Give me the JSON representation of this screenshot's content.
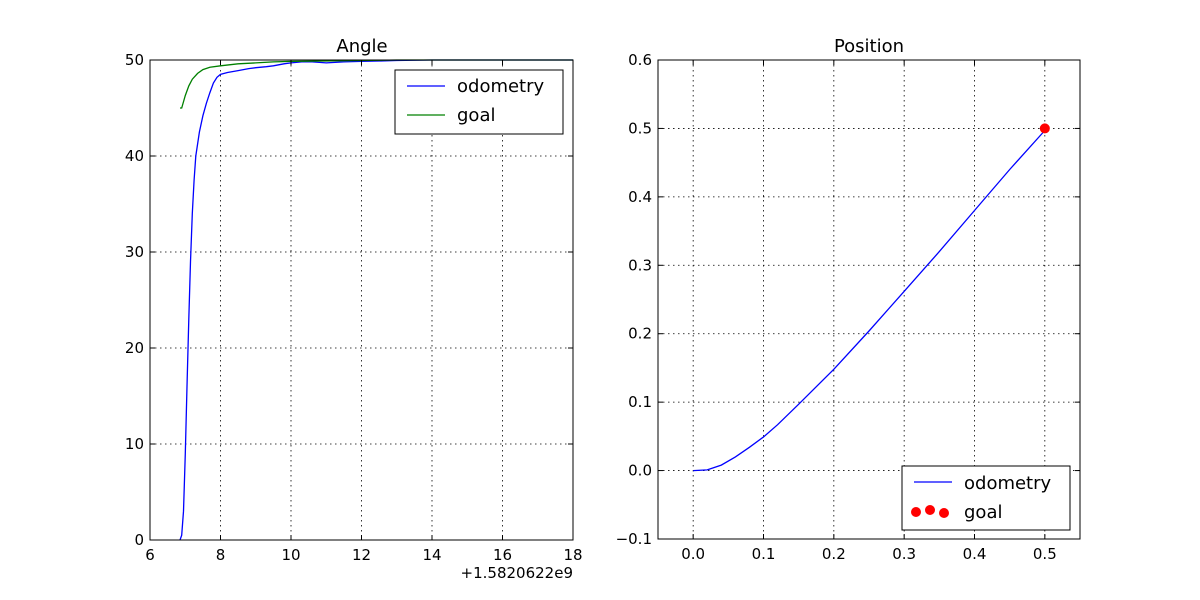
{
  "chart_data": [
    {
      "type": "line",
      "title": "Angle",
      "xlabel": "",
      "ylabel": "",
      "xlim": [
        6,
        18
      ],
      "ylim": [
        0,
        50
      ],
      "xticks": [
        6,
        8,
        10,
        12,
        14,
        16,
        18
      ],
      "yticks": [
        0,
        10,
        20,
        30,
        40,
        50
      ],
      "x_offset_label": "+1.5820622e9",
      "grid": true,
      "legend": {
        "placement": "top-right",
        "entries": [
          "odometry",
          "goal"
        ]
      },
      "series": [
        {
          "name": "odometry",
          "color": "#0000ff",
          "points": [
            [
              6.85,
              0
            ],
            [
              6.9,
              0.5
            ],
            [
              6.95,
              3
            ],
            [
              7.0,
              9
            ],
            [
              7.05,
              16
            ],
            [
              7.1,
              23
            ],
            [
              7.15,
              29
            ],
            [
              7.2,
              34
            ],
            [
              7.25,
              37.5
            ],
            [
              7.3,
              40
            ],
            [
              7.4,
              42.5
            ],
            [
              7.5,
              44.2
            ],
            [
              7.6,
              45.5
            ],
            [
              7.7,
              46.6
            ],
            [
              7.8,
              47.6
            ],
            [
              7.9,
              48.2
            ],
            [
              8.0,
              48.5
            ],
            [
              8.2,
              48.7
            ],
            [
              8.5,
              48.9
            ],
            [
              8.8,
              49.1
            ],
            [
              9.0,
              49.2
            ],
            [
              9.3,
              49.3
            ],
            [
              9.5,
              49.4
            ],
            [
              9.8,
              49.6
            ],
            [
              10.0,
              49.7
            ],
            [
              10.3,
              49.8
            ],
            [
              10.6,
              49.8
            ],
            [
              11.0,
              49.7
            ],
            [
              11.5,
              49.8
            ],
            [
              12.0,
              49.85
            ],
            [
              12.5,
              49.9
            ],
            [
              13.0,
              49.95
            ],
            [
              14.0,
              50
            ],
            [
              16.0,
              50
            ],
            [
              18.0,
              50
            ]
          ]
        },
        {
          "name": "goal",
          "color": "#008000",
          "points": [
            [
              6.85,
              45
            ],
            [
              6.9,
              45
            ],
            [
              7.0,
              46.3
            ],
            [
              7.1,
              47.3
            ],
            [
              7.2,
              48
            ],
            [
              7.35,
              48.6
            ],
            [
              7.5,
              49
            ],
            [
              7.7,
              49.25
            ],
            [
              8.0,
              49.4
            ],
            [
              8.5,
              49.6
            ],
            [
              9.0,
              49.7
            ],
            [
              9.5,
              49.8
            ],
            [
              10.0,
              49.85
            ],
            [
              11.0,
              49.9
            ],
            [
              12.0,
              49.95
            ],
            [
              13.0,
              50
            ],
            [
              18.0,
              50
            ]
          ]
        }
      ]
    },
    {
      "type": "line",
      "title": "Position",
      "xlabel": "",
      "ylabel": "",
      "xlim": [
        -0.05,
        0.55
      ],
      "ylim": [
        -0.1,
        0.6
      ],
      "xticks": [
        0.0,
        0.1,
        0.2,
        0.3,
        0.4,
        0.5
      ],
      "xtick_labels": [
        "0.0",
        "0.1",
        "0.2",
        "0.3",
        "0.4",
        "0.5"
      ],
      "yticks": [
        -0.1,
        0.0,
        0.1,
        0.2,
        0.3,
        0.4,
        0.5,
        0.6
      ],
      "ytick_labels": [
        "−0.1",
        "0.0",
        "0.1",
        "0.2",
        "0.3",
        "0.4",
        "0.5",
        "0.6"
      ],
      "grid": true,
      "legend": {
        "placement": "bottom-right",
        "entries": [
          "odometry",
          "goal"
        ]
      },
      "series": [
        {
          "name": "odometry",
          "color": "#0000ff",
          "points": [
            [
              0.0,
              0.0
            ],
            [
              0.02,
              0.001
            ],
            [
              0.04,
              0.008
            ],
            [
              0.06,
              0.02
            ],
            [
              0.08,
              0.034
            ],
            [
              0.1,
              0.049
            ],
            [
              0.12,
              0.067
            ],
            [
              0.15,
              0.097
            ],
            [
              0.2,
              0.148
            ],
            [
              0.25,
              0.204
            ],
            [
              0.3,
              0.262
            ],
            [
              0.35,
              0.32
            ],
            [
              0.4,
              0.38
            ],
            [
              0.45,
              0.44
            ],
            [
              0.5,
              0.497
            ]
          ]
        },
        {
          "name": "goal",
          "color": "#ff0000",
          "marker": "circle",
          "points": [
            [
              0.5,
              0.5
            ]
          ]
        }
      ]
    }
  ]
}
